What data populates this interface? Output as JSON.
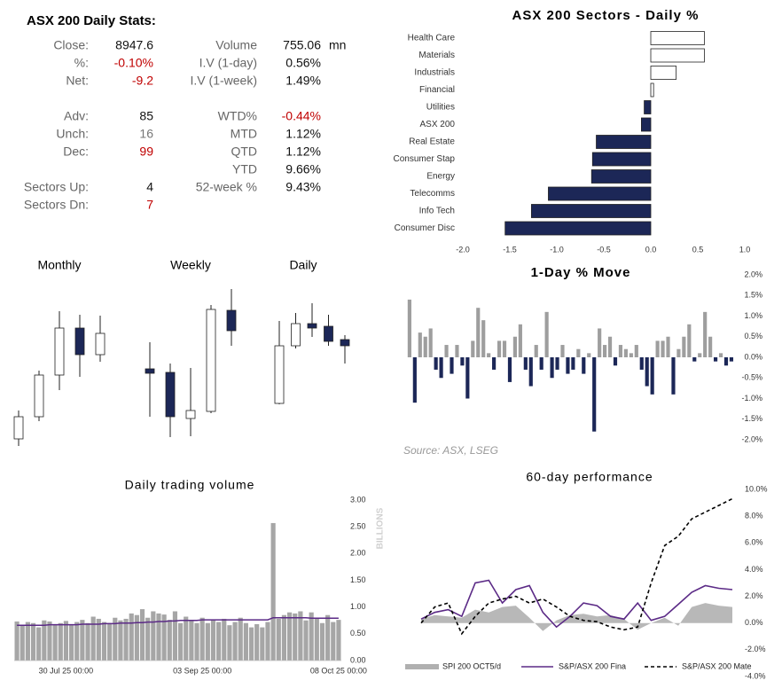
{
  "stats": {
    "title": "ASX 200 Daily Stats:",
    "left": [
      {
        "label": "Close:",
        "value": 8947.6
      },
      {
        "label": "%:",
        "value": "-0.10%",
        "color": "#c00000"
      },
      {
        "label": "Net:",
        "value": -9.2,
        "color": "#c00000"
      },
      {
        "label": "Adv:",
        "value": 85
      },
      {
        "label": "Unch:",
        "value": 16,
        "color": "#777777"
      },
      {
        "label": "Dec:",
        "value": 99,
        "color": "#c00000"
      },
      {
        "label": "Sectors Up:",
        "value": 4
      },
      {
        "label": "Sectors Dn:",
        "value": 7,
        "color": "#c00000"
      }
    ],
    "right": [
      {
        "label": "Volume",
        "value": 755.06,
        "unit": "mn"
      },
      {
        "label": "I.V (1-day)",
        "value": "0.56%"
      },
      {
        "label": "I.V (1-week)",
        "value": "1.49%"
      },
      {
        "label": "WTD%",
        "value": "-0.44%",
        "color": "#c00000"
      },
      {
        "label": "MTD",
        "value": "1.12%"
      },
      {
        "label": "QTD",
        "value": "1.12%"
      },
      {
        "label": "YTD",
        "value": "9.66%"
      },
      {
        "label": "52-week %",
        "value": "9.43%"
      }
    ]
  },
  "chart_data": [
    {
      "type": "hbar",
      "title": "ASX 200 Sectors - Daily %",
      "categories": [
        "Health Care",
        "Materials",
        "Industrials",
        "Financial",
        "Utilities",
        "ASX 200",
        "Real Estate",
        "Consumer Stap",
        "Energy",
        "Telecomms",
        "Info Tech",
        "Consumer Disc"
      ],
      "values": [
        0.57,
        0.57,
        0.27,
        0.03,
        -0.07,
        -0.1,
        -0.58,
        -0.62,
        -0.63,
        -1.09,
        -1.27,
        -1.55
      ],
      "positive_color": "#ffffff",
      "negative_color": "#1c2757",
      "xlim": [
        -2,
        1
      ],
      "xticks": [
        {
          "value": -2,
          "label": "-2.0"
        },
        -1.5,
        {
          "value": -1,
          "label": "-1.0"
        },
        -0.5,
        {
          "value": 0,
          "label": "0.0"
        },
        0.5,
        {
          "value": 1,
          "label": "1.0"
        }
      ]
    },
    {
      "type": "candlestick",
      "title": "Monthly",
      "open": [
        25,
        50,
        97,
        150,
        120
      ],
      "high": [
        57,
        102,
        169,
        165,
        164
      ],
      "low": [
        17,
        45,
        80,
        95,
        112
      ],
      "close": [
        50,
        97,
        150,
        120,
        144
      ],
      "up_color": "#ffffff",
      "down_color": "#1c2757"
    },
    {
      "type": "candlestick",
      "title": "Weekly",
      "open": [
        104,
        100,
        48,
        56,
        170
      ],
      "high": [
        134,
        110,
        105,
        176,
        194
      ],
      "low": [
        50,
        27,
        28,
        54,
        130
      ],
      "close": [
        99,
        50,
        57,
        171,
        147
      ],
      "up_color": "#ffffff",
      "down_color": "#1c2757"
    },
    {
      "type": "candlestick",
      "title": "Daily",
      "open": [
        65,
        130,
        155,
        152,
        137
      ],
      "high": [
        158,
        167,
        178,
        165,
        142
      ],
      "low": [
        64,
        127,
        140,
        130,
        110
      ],
      "close": [
        130,
        155,
        150,
        135,
        130
      ],
      "up_color": "#ffffff",
      "down_color": "#1c2757"
    },
    {
      "type": "bar",
      "title": "1-Day % Move",
      "annotation": "Source: ASX, LSEG",
      "values": [
        1.4,
        -1.1,
        0.6,
        0.5,
        0.7,
        -0.3,
        -0.5,
        0.3,
        -0.4,
        0.3,
        -0.2,
        -1.0,
        0.4,
        1.2,
        0.9,
        0.1,
        -0.3,
        0.4,
        0.4,
        -0.6,
        0.5,
        0.8,
        -0.3,
        -0.7,
        0.3,
        -0.3,
        1.1,
        -0.5,
        -0.3,
        0.3,
        -0.4,
        -0.3,
        0.2,
        -0.4,
        0.1,
        -1.8,
        0.7,
        0.3,
        0.5,
        -0.2,
        0.3,
        0.2,
        0.1,
        0.3,
        -0.3,
        -0.7,
        -0.9,
        0.4,
        0.4,
        0.5,
        -0.9,
        0.2,
        0.5,
        0.8,
        -0.1,
        0.1,
        1.1,
        0.5,
        -0.1,
        0.1,
        -0.2,
        -0.1
      ],
      "positive_color": "#9e9e9e",
      "negative_color": "#1c2757",
      "ylim": [
        -2,
        2
      ],
      "yticks": [
        {
          "value": 2,
          "label": "2.0%"
        },
        {
          "value": 1.5,
          "label": "1.5%"
        },
        {
          "value": 1,
          "label": "1.0%"
        },
        {
          "value": 0.5,
          "label": "0.5%"
        },
        {
          "value": 0,
          "label": "0.0%"
        },
        {
          "value": -0.5,
          "label": "-0.5%"
        },
        {
          "value": -1,
          "label": "-1.0%"
        },
        {
          "value": -1.5,
          "label": "-1.5%"
        },
        {
          "value": -2,
          "label": "-2.0%"
        }
      ]
    },
    {
      "type": "volume",
      "title": "Daily trading volume",
      "ylabel": "BILLIONS",
      "categories": [
        null,
        null,
        null,
        null,
        null,
        null,
        null,
        null,
        null,
        "30 Jul 25 00:00",
        null,
        null,
        null,
        null,
        null,
        null,
        null,
        null,
        null,
        null,
        null,
        null,
        null,
        null,
        null,
        null,
        null,
        null,
        null,
        null,
        null,
        null,
        null,
        null,
        "03 Sep 25 00:00",
        null,
        null,
        null,
        null,
        null,
        null,
        null,
        null,
        null,
        null,
        null,
        null,
        null,
        null,
        null,
        null,
        null,
        null,
        null,
        null,
        null,
        null,
        null,
        null,
        "08 Oct 25 00:00"
      ],
      "values": [
        0.73,
        0.65,
        0.72,
        0.7,
        0.62,
        0.75,
        0.73,
        0.68,
        0.7,
        0.74,
        0.68,
        0.72,
        0.76,
        0.7,
        0.82,
        0.78,
        0.72,
        0.7,
        0.8,
        0.75,
        0.78,
        0.88,
        0.85,
        0.96,
        0.8,
        0.92,
        0.88,
        0.86,
        0.76,
        0.92,
        0.7,
        0.82,
        0.74,
        0.7,
        0.8,
        0.7,
        0.76,
        0.72,
        0.78,
        0.66,
        0.72,
        0.8,
        0.7,
        0.62,
        0.68,
        0.62,
        0.72,
        2.57,
        0.78,
        0.85,
        0.9,
        0.88,
        0.92,
        0.75,
        0.9,
        0.8,
        0.7,
        0.85,
        0.72,
        0.76
      ],
      "average_values": [
        0.66,
        0.66,
        0.66,
        0.66,
        0.66,
        0.66,
        0.67,
        0.67,
        0.67,
        0.67,
        0.67,
        0.67,
        0.68,
        0.68,
        0.68,
        0.68,
        0.69,
        0.69,
        0.69,
        0.7,
        0.7,
        0.7,
        0.71,
        0.71,
        0.72,
        0.72,
        0.73,
        0.73,
        0.74,
        0.74,
        0.75,
        0.75,
        0.75,
        0.75,
        0.76,
        0.76,
        0.76,
        0.76,
        0.76,
        0.76,
        0.76,
        0.76,
        0.76,
        0.76,
        0.76,
        0.76,
        0.76,
        0.8,
        0.8,
        0.8,
        0.8,
        0.8,
        0.8,
        0.8,
        0.79,
        0.79,
        0.79,
        0.79,
        0.79,
        0.79
      ],
      "color": "#a6a6a6",
      "average_color": "#5b2a86",
      "ylim": [
        0,
        3
      ],
      "yticks": [
        {
          "value": 3,
          "label": "3.00"
        },
        {
          "value": 2.5,
          "label": "2.50"
        },
        {
          "value": 2,
          "label": "2.00"
        },
        {
          "value": 1.5,
          "label": "1.50"
        },
        {
          "value": 1,
          "label": "1.00"
        },
        {
          "value": 0.5,
          "label": "0.50"
        },
        {
          "value": 0,
          "label": "0.00"
        }
      ]
    },
    {
      "type": "line",
      "title": "60-day performance",
      "series": [
        {
          "name": "SPI 200 OCT5/d",
          "color": "#b0b0b0",
          "style": "area",
          "values": [
            0.3,
            0.6,
            0.5,
            0.4,
            1.0,
            0.8,
            1.2,
            1.3,
            0.4,
            -0.6,
            0.2,
            0.6,
            0.7,
            0.5,
            0.6,
            0.3,
            -0.5,
            0.0,
            0.4,
            -0.2,
            1.2,
            1.5,
            1.3,
            1.2
          ]
        },
        {
          "name": "S&P/ASX 200 Fina",
          "color": "#5b2a86",
          "style": "solid",
          "values": [
            0.3,
            0.8,
            1.0,
            0.5,
            3.0,
            3.2,
            1.5,
            2.5,
            2.8,
            0.8,
            -0.3,
            0.5,
            1.5,
            1.3,
            0.5,
            0.3,
            1.5,
            0.2,
            0.5,
            1.4,
            2.3,
            2.8,
            2.6,
            2.5
          ]
        },
        {
          "name": "S&P/ASX 200 Mate",
          "color": "#000000",
          "style": "dashed",
          "values": [
            0,
            1.2,
            1.5,
            -0.8,
            0.5,
            1.5,
            1.8,
            2.0,
            1.5,
            1.8,
            1.2,
            0.5,
            0.2,
            0.1,
            -0.3,
            -0.5,
            -0.3,
            3.0,
            5.8,
            6.5,
            7.8,
            8.3,
            8.8,
            9.3
          ]
        }
      ],
      "ylim": [
        -4,
        10
      ],
      "yticks": [
        {
          "value": 10,
          "label": "10.0%"
        },
        {
          "value": 8,
          "label": "8.0%"
        },
        {
          "value": 6,
          "label": "6.0%"
        },
        {
          "value": 4,
          "label": "4.0%"
        },
        {
          "value": 2,
          "label": "2.0%"
        },
        {
          "value": 0,
          "label": "0.0%"
        },
        {
          "value": -2,
          "label": "-2.0%"
        },
        {
          "value": -4,
          "label": "-4.0%"
        }
      ]
    }
  ]
}
